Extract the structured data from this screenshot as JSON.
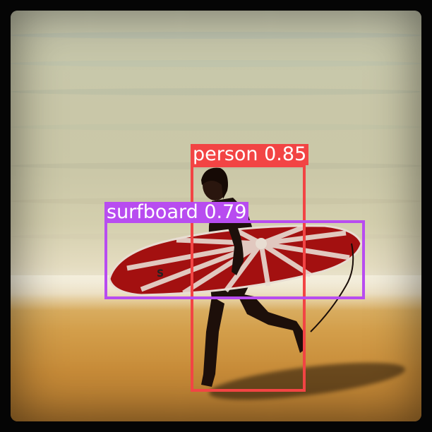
{
  "detections": [
    {
      "label": "person",
      "score": "0.85",
      "text": "person 0.85",
      "color": "#f24444"
    },
    {
      "label": "surfboard",
      "score": "0.79",
      "text": "surfboard 0.79",
      "color": "#b84cf0"
    }
  ],
  "board_logo": "S"
}
